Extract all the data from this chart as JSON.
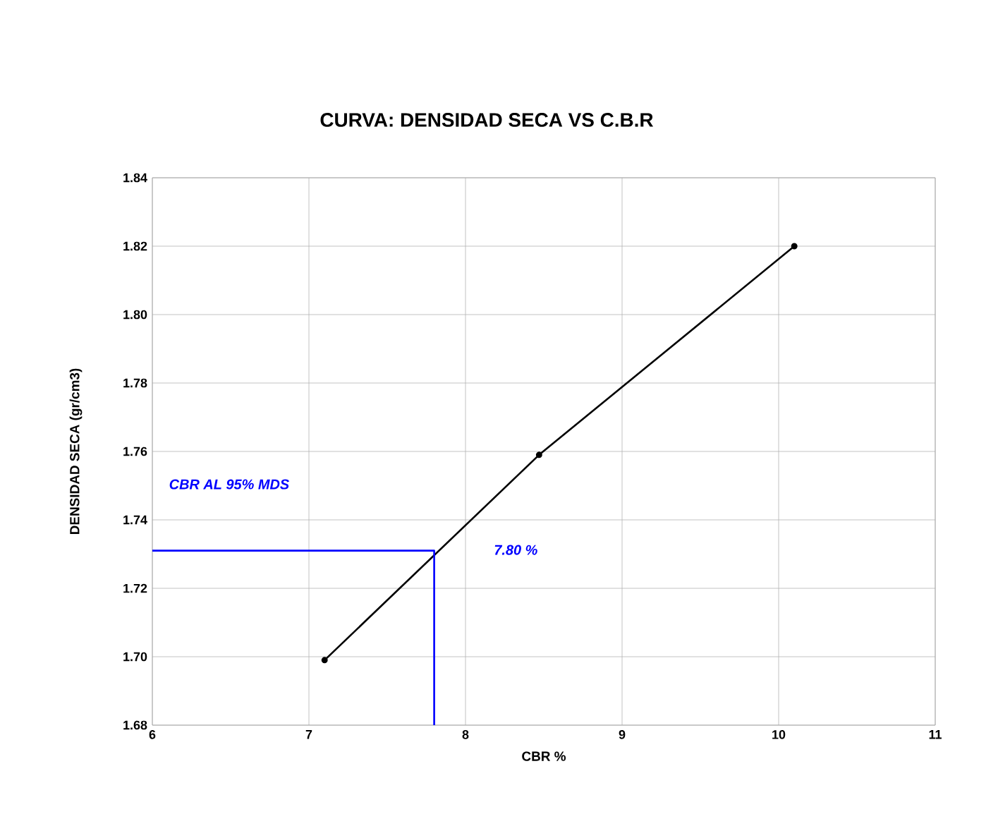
{
  "chart_data": {
    "type": "line",
    "title": "CURVA:  DENSIDAD SECA VS  C.B.R",
    "xlabel": "CBR %",
    "ylabel": "DENSIDAD SECA (gr/cm3)",
    "series": [
      {
        "color": "#000000",
        "x": [
          7.1,
          8.47,
          10.1
        ],
        "values": [
          1.699,
          1.759,
          1.82
        ],
        "marker": "circle"
      },
      {
        "color": "#0000ff",
        "x": [
          6,
          7.8,
          7.8
        ],
        "values": [
          1.731,
          1.731,
          1.68
        ],
        "marker": "none"
      }
    ],
    "xlim": [
      6,
      11
    ],
    "xticks": [
      6,
      7,
      8,
      9,
      10,
      11
    ],
    "ylim": [
      1.68,
      1.84
    ],
    "yticks": [
      {
        "value": 1.68,
        "label": "1.68"
      },
      {
        "value": 1.7,
        "label": "1.70"
      },
      {
        "value": 1.72,
        "label": "1.72"
      },
      {
        "value": 1.74,
        "label": "1.74"
      },
      {
        "value": 1.76,
        "label": "1.76"
      },
      {
        "value": 1.78,
        "label": "1.78"
      },
      {
        "value": 1.8,
        "label": "1.80"
      },
      {
        "value": 1.82,
        "label": "1.82"
      },
      {
        "value": 1.84,
        "label": "1.84"
      }
    ],
    "grid": true,
    "line_style": "solid",
    "annotations": [
      "CBR AL 95% MDS",
      "7.80  %"
    ]
  }
}
